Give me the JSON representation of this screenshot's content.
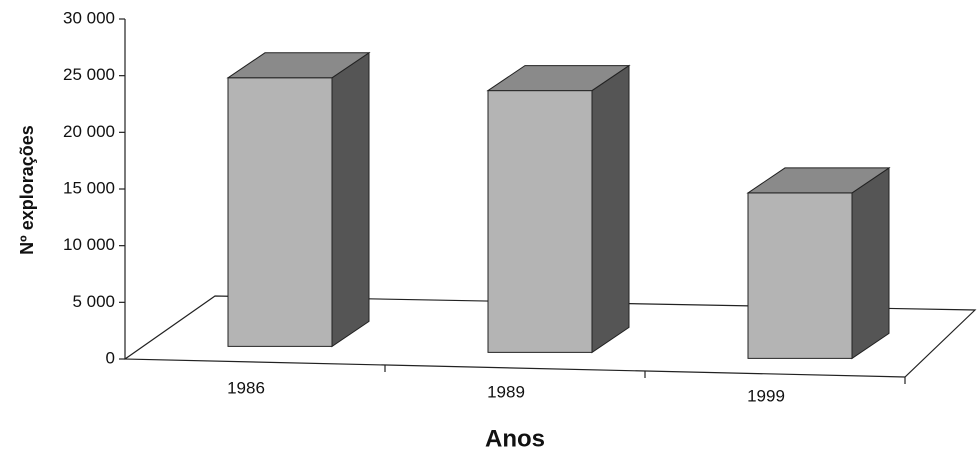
{
  "chart_data": {
    "type": "bar3d",
    "x_label": "Anos",
    "y_label": "Nº explorações",
    "categories": [
      "1986",
      "1989",
      "1999"
    ],
    "values": [
      23700,
      23100,
      14600
    ],
    "color": "#b4b4b4",
    "ylim": [
      0,
      30000
    ],
    "yticks": [
      {
        "value": 0,
        "label": "0"
      },
      {
        "value": 5000,
        "label": "5 000"
      },
      {
        "value": 10000,
        "label": "10 000"
      },
      {
        "value": 15000,
        "label": "15 000"
      },
      {
        "value": 20000,
        "label": "20 000"
      },
      {
        "value": 25000,
        "label": "25 000"
      },
      {
        "value": 30000,
        "label": "30 000"
      }
    ]
  }
}
